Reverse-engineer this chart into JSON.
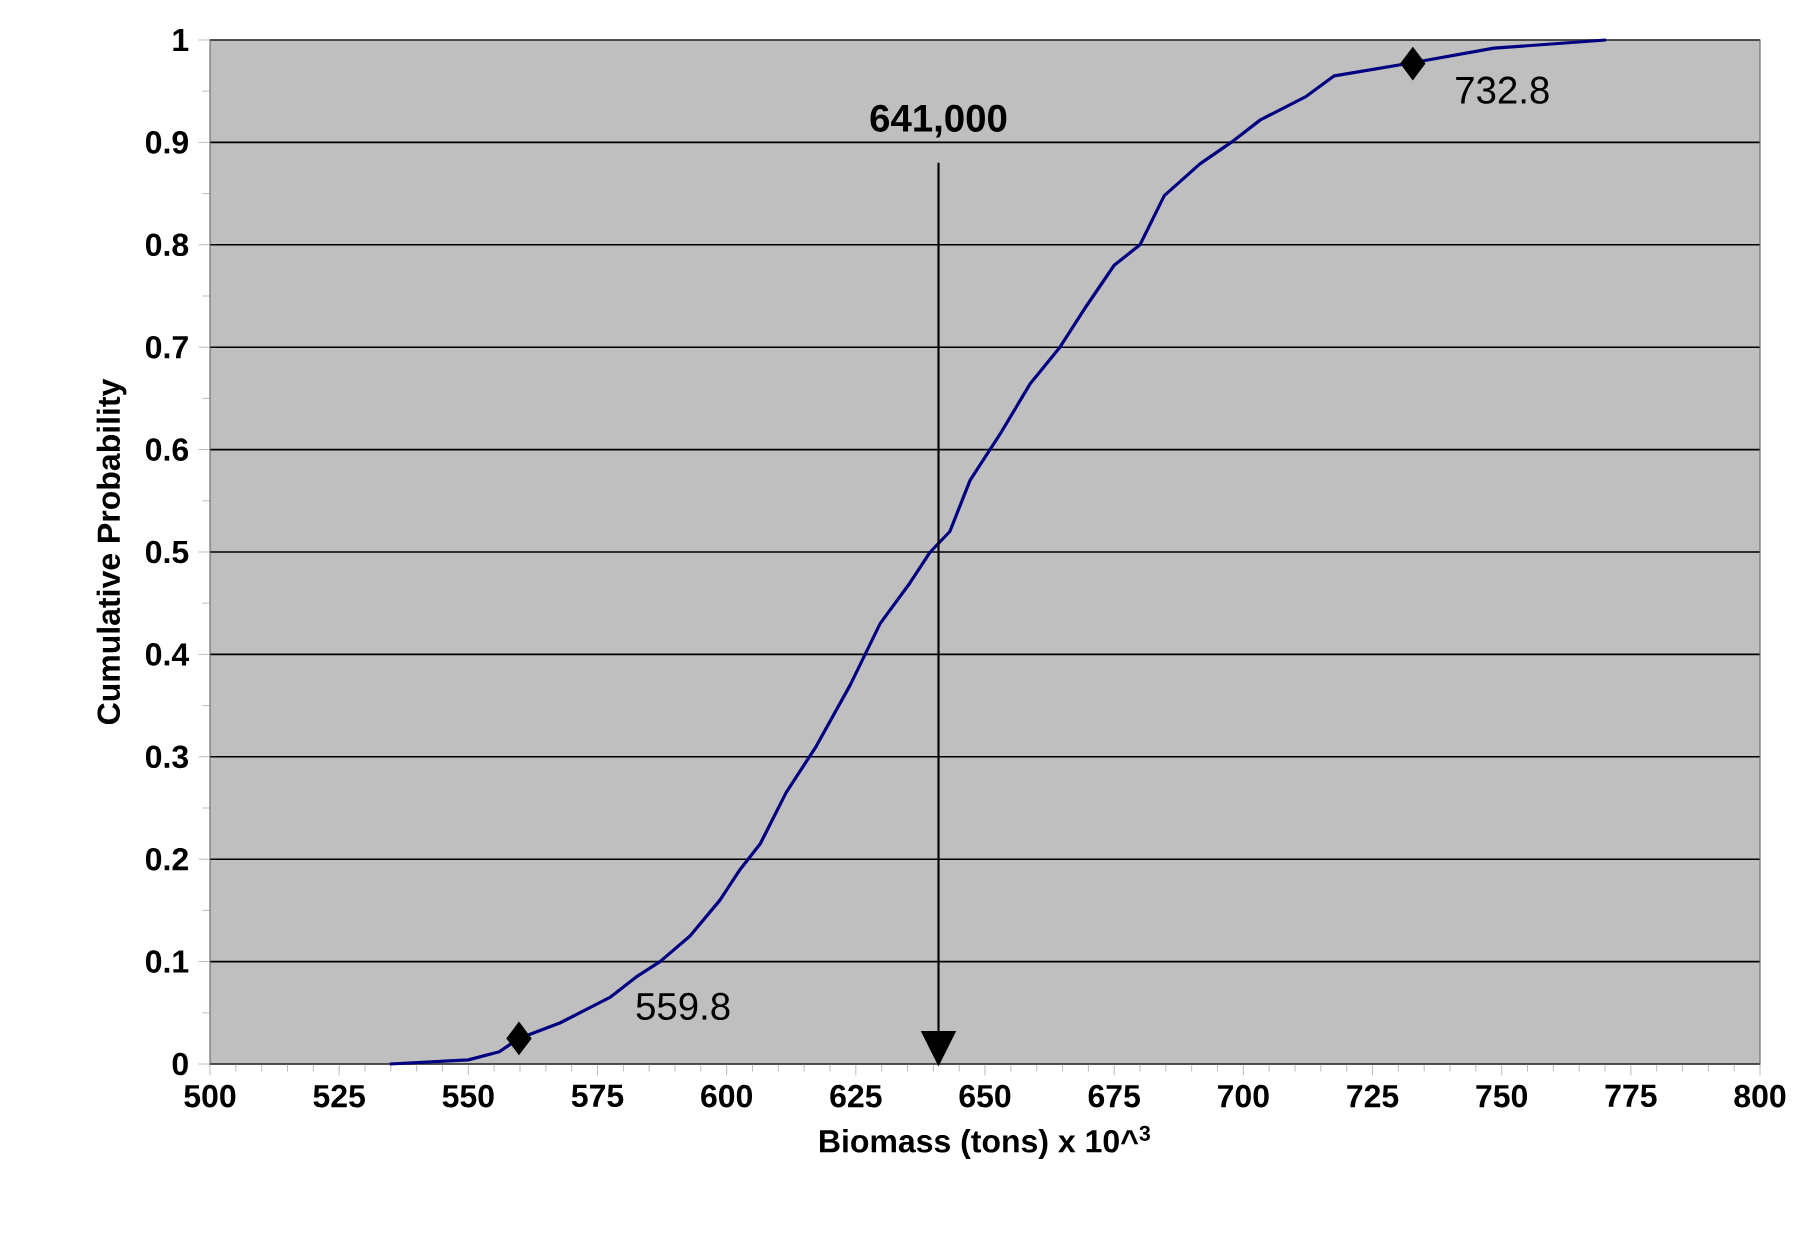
{
  "chart_data": {
    "type": "line",
    "xlabel": "Biomass (tons) x 10^$^{3}$",
    "ylabel": "Cumulative Probability",
    "xlim": [
      500,
      800
    ],
    "xticks": [
      500,
      525,
      550,
      575,
      600,
      625,
      650,
      675,
      700,
      725,
      750,
      775,
      800
    ],
    "ylim": [
      0,
      1
    ],
    "yticks": [
      0,
      0.1,
      0.2,
      0.3,
      0.4,
      0.5,
      0.6,
      0.7,
      0.8,
      0.9,
      1
    ],
    "grid": "y",
    "series": [
      {
        "color": "#000080",
        "marker": "none",
        "x": [
          534.8,
          550,
          556,
          559.8,
          567.7,
          577.4,
          582.5,
          587.1,
          592.9,
          598.7,
          602.6,
          606.5,
          611.5,
          617.3,
          623.9,
          629.7,
          635.5,
          639.4,
          643.2,
          647.1,
          652.9,
          658.7,
          664.5,
          669.6,
          675,
          680,
          684.7,
          691.6,
          698.2,
          703.3,
          712.2,
          717.6,
          733,
          748.5,
          770.2
        ],
        "values": [
          0,
          0.004,
          0.012,
          0.025,
          0.04,
          0.065,
          0.085,
          0.1,
          0.125,
          0.16,
          0.19,
          0.215,
          0.265,
          0.31,
          0.37,
          0.43,
          0.47,
          0.5,
          0.52,
          0.57,
          0.615,
          0.664,
          0.7,
          0.74,
          0.78,
          0.8,
          0.848,
          0.879,
          0.902,
          0.922,
          0.945,
          0.965,
          0.978,
          0.992,
          1
        ]
      },
      {
        "type": "scatter",
        "color": "#000000",
        "marker": "diamond",
        "x": [
          559.8,
          732.8
        ],
        "values": [
          0.025,
          0.977
        ]
      }
    ],
    "ref_lines": [
      {
        "axis": "x",
        "value": 641,
        "label": "641,000",
        "color": "#000000"
      }
    ],
    "annotations": [
      "559.8",
      "732.8"
    ]
  }
}
